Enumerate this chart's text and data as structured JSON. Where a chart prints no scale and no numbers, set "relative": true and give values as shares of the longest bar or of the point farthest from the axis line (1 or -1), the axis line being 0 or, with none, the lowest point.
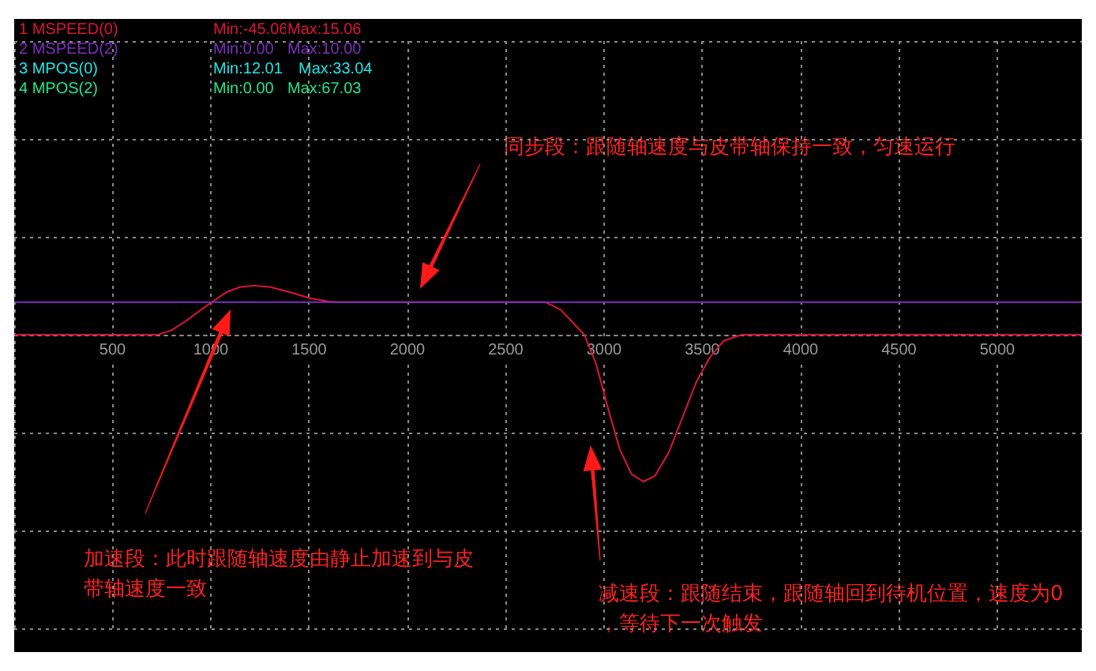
{
  "chart_data": {
    "type": "line",
    "relative": true,
    "xlim": [
      0,
      5430
    ],
    "xticks": [
      500,
      1000,
      1500,
      2000,
      2500,
      3000,
      3500,
      4000,
      4500,
      5000
    ],
    "grid": true,
    "marker": "none",
    "line_style": "solid",
    "tick_labels": "x",
    "series": [
      {
        "color": "#dc143c",
        "x": [
          0,
          730,
          800,
          870,
          940,
          1005,
          1080,
          1150,
          1220,
          1300,
          1400,
          1500,
          1600,
          1650,
          2700,
          2780,
          2850,
          2900,
          2960,
          3020,
          3080,
          3140,
          3200,
          3260,
          3330,
          3400,
          3470,
          3540,
          3610,
          3700,
          5430
        ],
        "values": [
          0,
          0,
          0.03,
          0.09,
          0.16,
          0.222,
          0.29,
          0.325,
          0.334,
          0.325,
          0.29,
          0.25,
          0.226,
          0.222,
          0.222,
          0.17,
          0.07,
          0,
          -0.2,
          -0.5,
          -0.78,
          -0.95,
          -1,
          -0.96,
          -0.8,
          -0.56,
          -0.32,
          -0.15,
          -0.04,
          0,
          0
        ]
      },
      {
        "color": "#7b2fbe",
        "x": [
          0,
          5430
        ],
        "values": [
          0.222,
          0.222
        ]
      }
    ],
    "annotations": [
      "1 MSPEED(0)",
      "Min:-45.06",
      "Max:15.06",
      "2 MSPEED(2)",
      "Min:0.00",
      "Max:10.00",
      "3 MPOS(0)",
      "Min:12.01",
      "Max:33.04",
      "4 MPOS(2)",
      "Min:0.00",
      "Max:67.03",
      "同步段：跟随轴速度与皮带轴保持一致，匀速运行",
      "加速段：此时跟随轴速度由静止加速到与皮带轴速度一致",
      "减速段：跟随结束，跟随轴回到待机位置，速度为0，等待下一次触发"
    ]
  }
}
